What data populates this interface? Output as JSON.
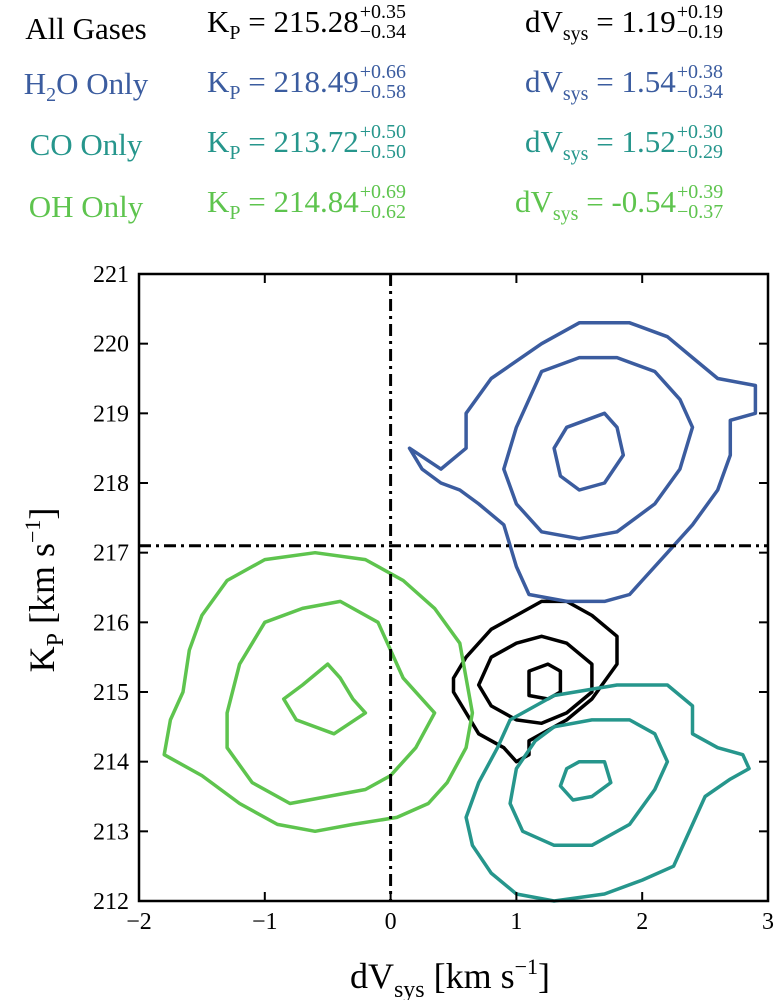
{
  "chart_data": {
    "type": "contour",
    "title": "",
    "xlabel": "dV",
    "xlabel_sub": "sys",
    "xlabel_unit": "[km s",
    "ylabel": "K",
    "ylabel_sub": "P",
    "ylabel_unit": "[km s",
    "unit_exp": "−1",
    "unit_close": "]",
    "xlim": [
      -2,
      3
    ],
    "ylim": [
      212,
      221
    ],
    "x_ticks": [
      -2,
      -1,
      0,
      1,
      2,
      3
    ],
    "x_tick_labels": [
      "−2",
      "−1",
      "0",
      "1",
      "2",
      "3"
    ],
    "y_ticks": [
      212,
      213,
      214,
      215,
      216,
      217,
      218,
      219,
      220,
      221
    ],
    "y_tick_labels": [
      "212",
      "213",
      "214",
      "215",
      "216",
      "217",
      "218",
      "219",
      "220",
      "221"
    ],
    "reference_lines": {
      "x": 0,
      "y": 217.1
    },
    "legend_position": "top",
    "series": [
      {
        "name": "All Gases",
        "color": "#000000",
        "kp": "215.28",
        "kp_plus": "+0.35",
        "kp_minus": "−0.34",
        "dv": "1.19",
        "dv_plus": "+0.19",
        "dv_minus": "−0.19",
        "contours": [
          [
            [
              1.0,
              216.1
            ],
            [
              1.2,
              216.3
            ],
            [
              1.4,
              216.3
            ],
            [
              1.6,
              216.1
            ],
            [
              1.8,
              215.8
            ],
            [
              1.8,
              215.4
            ],
            [
              1.6,
              214.9
            ],
            [
              1.4,
              214.6
            ],
            [
              1.2,
              214.4
            ],
            [
              1.1,
              214.3
            ],
            [
              1.1,
              214.1
            ],
            [
              1.0,
              214.0
            ],
            [
              0.9,
              214.2
            ],
            [
              0.7,
              214.4
            ],
            [
              0.6,
              214.7
            ],
            [
              0.5,
              215.0
            ],
            [
              0.5,
              215.2
            ],
            [
              0.6,
              215.5
            ],
            [
              0.8,
              215.9
            ]
          ],
          [
            [
              1.0,
              215.7
            ],
            [
              1.2,
              215.8
            ],
            [
              1.4,
              215.7
            ],
            [
              1.6,
              215.4
            ],
            [
              1.6,
              215.0
            ],
            [
              1.4,
              214.7
            ],
            [
              1.2,
              214.55
            ],
            [
              1.0,
              214.6
            ],
            [
              0.8,
              214.8
            ],
            [
              0.7,
              215.1
            ],
            [
              0.8,
              215.5
            ]
          ],
          [
            [
              1.1,
              215.3
            ],
            [
              1.25,
              215.4
            ],
            [
              1.35,
              215.3
            ],
            [
              1.35,
              215.0
            ],
            [
              1.25,
              214.9
            ],
            [
              1.1,
              214.95
            ],
            [
              1.1,
              215.15
            ]
          ]
        ]
      },
      {
        "name": "H",
        "name_sub": "2",
        "name_tail": "O Only",
        "color": "#3b5c9f",
        "kp": "218.49",
        "kp_plus": "+0.66",
        "kp_minus": "−0.58",
        "dv": "1.54",
        "dv_plus": "+0.38",
        "dv_minus": "−0.34",
        "contours": [
          [
            [
              0.4,
              218.2
            ],
            [
              0.6,
              218.5
            ],
            [
              0.6,
              219.0
            ],
            [
              0.8,
              219.5
            ],
            [
              1.2,
              220.0
            ],
            [
              1.5,
              220.3
            ],
            [
              1.9,
              220.3
            ],
            [
              2.2,
              220.1
            ],
            [
              2.4,
              219.8
            ],
            [
              2.6,
              219.5
            ],
            [
              2.9,
              219.4
            ],
            [
              2.9,
              219.0
            ],
            [
              2.7,
              218.9
            ],
            [
              2.7,
              218.4
            ],
            [
              2.6,
              217.9
            ],
            [
              2.4,
              217.4
            ],
            [
              2.2,
              217.0
            ],
            [
              2.0,
              216.6
            ],
            [
              1.9,
              216.4
            ],
            [
              1.7,
              216.3
            ],
            [
              1.4,
              216.3
            ],
            [
              1.1,
              216.4
            ],
            [
              1.0,
              216.8
            ],
            [
              0.9,
              217.4
            ],
            [
              0.7,
              217.7
            ],
            [
              0.55,
              217.9
            ],
            [
              0.4,
              218.0
            ],
            [
              0.25,
              218.2
            ],
            [
              0.15,
              218.5
            ]
          ],
          [
            [
              1.2,
              219.6
            ],
            [
              1.5,
              219.8
            ],
            [
              1.8,
              219.8
            ],
            [
              2.1,
              219.6
            ],
            [
              2.3,
              219.2
            ],
            [
              2.4,
              218.8
            ],
            [
              2.3,
              218.2
            ],
            [
              2.1,
              217.7
            ],
            [
              1.8,
              217.3
            ],
            [
              1.5,
              217.2
            ],
            [
              1.2,
              217.3
            ],
            [
              1.0,
              217.7
            ],
            [
              0.9,
              218.2
            ],
            [
              1.0,
              218.8
            ]
          ],
          [
            [
              1.4,
              218.8
            ],
            [
              1.7,
              219.0
            ],
            [
              1.8,
              218.8
            ],
            [
              1.85,
              218.4
            ],
            [
              1.7,
              218.0
            ],
            [
              1.5,
              217.9
            ],
            [
              1.35,
              218.1
            ],
            [
              1.3,
              218.5
            ]
          ]
        ]
      },
      {
        "name": "CO Only",
        "color": "#26968c",
        "kp": "213.72",
        "kp_plus": "+0.50",
        "kp_minus": "−0.50",
        "dv": "1.52",
        "dv_plus": "+0.30",
        "dv_minus": "−0.29",
        "contours": [
          [
            [
              0.95,
              214.6
            ],
            [
              1.3,
              214.95
            ],
            [
              1.8,
              215.1
            ],
            [
              2.2,
              215.1
            ],
            [
              2.4,
              214.8
            ],
            [
              2.4,
              214.4
            ],
            [
              2.6,
              214.2
            ],
            [
              2.8,
              214.1
            ],
            [
              2.85,
              213.9
            ],
            [
              2.7,
              213.75
            ],
            [
              2.5,
              213.5
            ],
            [
              2.4,
              213.1
            ],
            [
              2.25,
              212.5
            ],
            [
              2.0,
              212.3
            ],
            [
              1.7,
              212.1
            ],
            [
              1.3,
              212.0
            ],
            [
              1.0,
              212.1
            ],
            [
              0.8,
              212.4
            ],
            [
              0.65,
              212.8
            ],
            [
              0.6,
              213.2
            ],
            [
              0.7,
              213.7
            ],
            [
              0.85,
              214.2
            ]
          ],
          [
            [
              1.3,
              214.5
            ],
            [
              1.6,
              214.6
            ],
            [
              1.9,
              214.6
            ],
            [
              2.1,
              214.4
            ],
            [
              2.2,
              214.0
            ],
            [
              2.1,
              213.6
            ],
            [
              1.9,
              213.1
            ],
            [
              1.6,
              212.8
            ],
            [
              1.3,
              212.8
            ],
            [
              1.05,
              213.0
            ],
            [
              0.95,
              213.4
            ],
            [
              1.0,
              213.9
            ],
            [
              1.15,
              214.3
            ]
          ],
          [
            [
              1.5,
              214.0
            ],
            [
              1.7,
              214.0
            ],
            [
              1.75,
              213.7
            ],
            [
              1.6,
              213.5
            ],
            [
              1.45,
              213.45
            ],
            [
              1.35,
              213.65
            ],
            [
              1.4,
              213.9
            ]
          ]
        ]
      },
      {
        "name": "OH Only",
        "color": "#5ec44e",
        "kp": "214.84",
        "kp_plus": "+0.69",
        "kp_minus": "−0.62",
        "dv": "-0.54",
        "dv_plus": "+0.39",
        "dv_minus": "−0.37",
        "contours": [
          [
            [
              -1.3,
              216.6
            ],
            [
              -1.0,
              216.9
            ],
            [
              -0.6,
              217.0
            ],
            [
              -0.2,
              216.9
            ],
            [
              0.1,
              216.6
            ],
            [
              0.35,
              216.2
            ],
            [
              0.55,
              215.7
            ],
            [
              0.6,
              215.2
            ],
            [
              0.65,
              214.7
            ],
            [
              0.6,
              214.2
            ],
            [
              0.45,
              213.7
            ],
            [
              0.3,
              213.4
            ],
            [
              0.05,
              213.2
            ],
            [
              -0.3,
              213.1
            ],
            [
              -0.6,
              213.0
            ],
            [
              -0.9,
              213.1
            ],
            [
              -1.2,
              213.4
            ],
            [
              -1.5,
              213.8
            ],
            [
              -1.8,
              214.1
            ],
            [
              -1.75,
              214.6
            ],
            [
              -1.65,
              215.0
            ],
            [
              -1.6,
              215.6
            ],
            [
              -1.5,
              216.1
            ]
          ],
          [
            [
              -1.0,
              216.0
            ],
            [
              -0.7,
              216.2
            ],
            [
              -0.4,
              216.3
            ],
            [
              -0.1,
              216.0
            ],
            [
              0.0,
              215.6
            ],
            [
              0.1,
              215.2
            ],
            [
              0.35,
              214.7
            ],
            [
              0.2,
              214.2
            ],
            [
              0.0,
              213.8
            ],
            [
              -0.2,
              213.6
            ],
            [
              -0.5,
              213.5
            ],
            [
              -0.8,
              213.4
            ],
            [
              -1.1,
              213.7
            ],
            [
              -1.3,
              214.2
            ],
            [
              -1.3,
              214.7
            ],
            [
              -1.2,
              215.4
            ]
          ],
          [
            [
              -0.7,
              215.1
            ],
            [
              -0.5,
              215.4
            ],
            [
              -0.4,
              215.2
            ],
            [
              -0.3,
              214.9
            ],
            [
              -0.2,
              214.7
            ],
            [
              -0.45,
              214.4
            ],
            [
              -0.75,
              214.6
            ],
            [
              -0.85,
              214.9
            ]
          ]
        ]
      }
    ]
  }
}
